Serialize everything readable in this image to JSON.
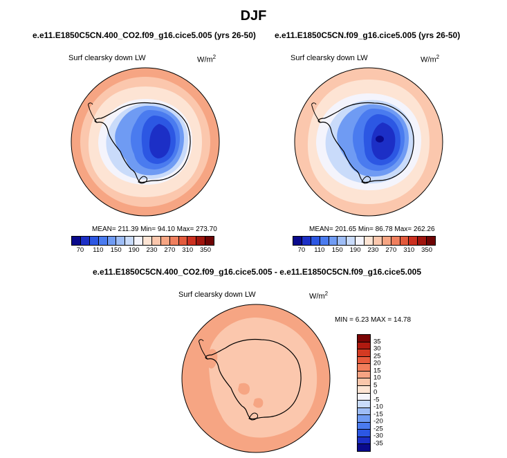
{
  "title": "DJF",
  "panels": [
    {
      "case": "e.e11.E1850C5CN.400_CO2.f09_g16.cice5.005 (yrs 26-50)",
      "variable": "Surf clearsky down LW",
      "units_base": "W/m",
      "units_exp": "2",
      "stats": "MEAN= 211.39  Min=  94.10  Max= 273.70"
    },
    {
      "case": "e.e11.E1850C5CN.f09_g16.cice5.005 (yrs 26-50)",
      "variable": "Surf clearsky down LW",
      "units_base": "W/m",
      "units_exp": "2",
      "stats": "MEAN= 201.65  Min=  86.78  Max= 262.26"
    }
  ],
  "diff": {
    "title": "e.e11.E1850C5CN.400_CO2.f09_g16.cice5.005 - e.e11.E1850C5CN.f09_g16.cice5.005",
    "variable": "Surf clearsky down LW",
    "units_base": "W/m",
    "units_exp": "2",
    "stats": "MIN =   6.23 MAX =  14.78"
  },
  "field_colorbar": {
    "ticks": [
      "70",
      "110",
      "150",
      "190",
      "230",
      "270",
      "310",
      "350"
    ],
    "colors": [
      "#0a0a8c",
      "#1c2fc6",
      "#2c57e3",
      "#4a7bef",
      "#6f9bf3",
      "#9ebdf6",
      "#c9dbfa",
      "#f4f4fc",
      "#fde4d4",
      "#fbc7ad",
      "#f6a583",
      "#ef7f5e",
      "#e35a3c",
      "#cc3020",
      "#a0150e",
      "#6e0404"
    ]
  },
  "diff_colorbar": {
    "ticks": [
      "35",
      "30",
      "25",
      "20",
      "15",
      "10",
      "5",
      "0",
      "-5",
      "-10",
      "-15",
      "-20",
      "-25",
      "-30",
      "-35"
    ],
    "colors": [
      "#7a0505",
      "#b01a10",
      "#d43a22",
      "#e85b3d",
      "#f27e5c",
      "#f6a383",
      "#fac6ab",
      "#fde4d4",
      "#f4f4fc",
      "#c9dbfa",
      "#9ebdf6",
      "#6f9bf3",
      "#4a7bef",
      "#2c57e3",
      "#1c2fc6",
      "#0a0a8c"
    ]
  }
}
